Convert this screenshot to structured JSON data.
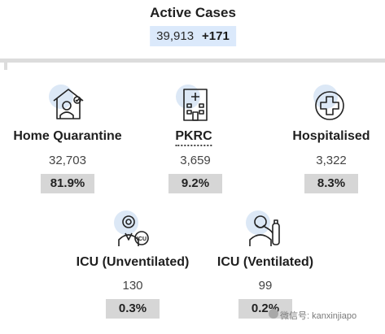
{
  "active": {
    "title": "Active Cases",
    "count": "39,913",
    "increase": "+171"
  },
  "categories": [
    {
      "label": "Home Quarantine",
      "count": "32,703",
      "percent": "81.9%",
      "icon": "home-quarantine-icon"
    },
    {
      "label": "PKRC",
      "count": "3,659",
      "percent": "9.2%",
      "icon": "hospital-building-icon"
    },
    {
      "label": "Hospitalised",
      "count": "3,322",
      "percent": "8.3%",
      "icon": "medical-cross-icon"
    },
    {
      "label": "ICU (Unventilated)",
      "count": "130",
      "percent": "0.3%",
      "icon": "icu-patient-icon"
    },
    {
      "label": "ICU (Ventilated)",
      "count": "99",
      "percent": "0.2%",
      "icon": "ventilator-patient-icon"
    }
  ],
  "watermark": "微信号: kanxinjiapo",
  "colors": {
    "highlight": "#dbe9fb",
    "badge": "#d6d6d6",
    "icon_circle": "#dce8f6"
  }
}
